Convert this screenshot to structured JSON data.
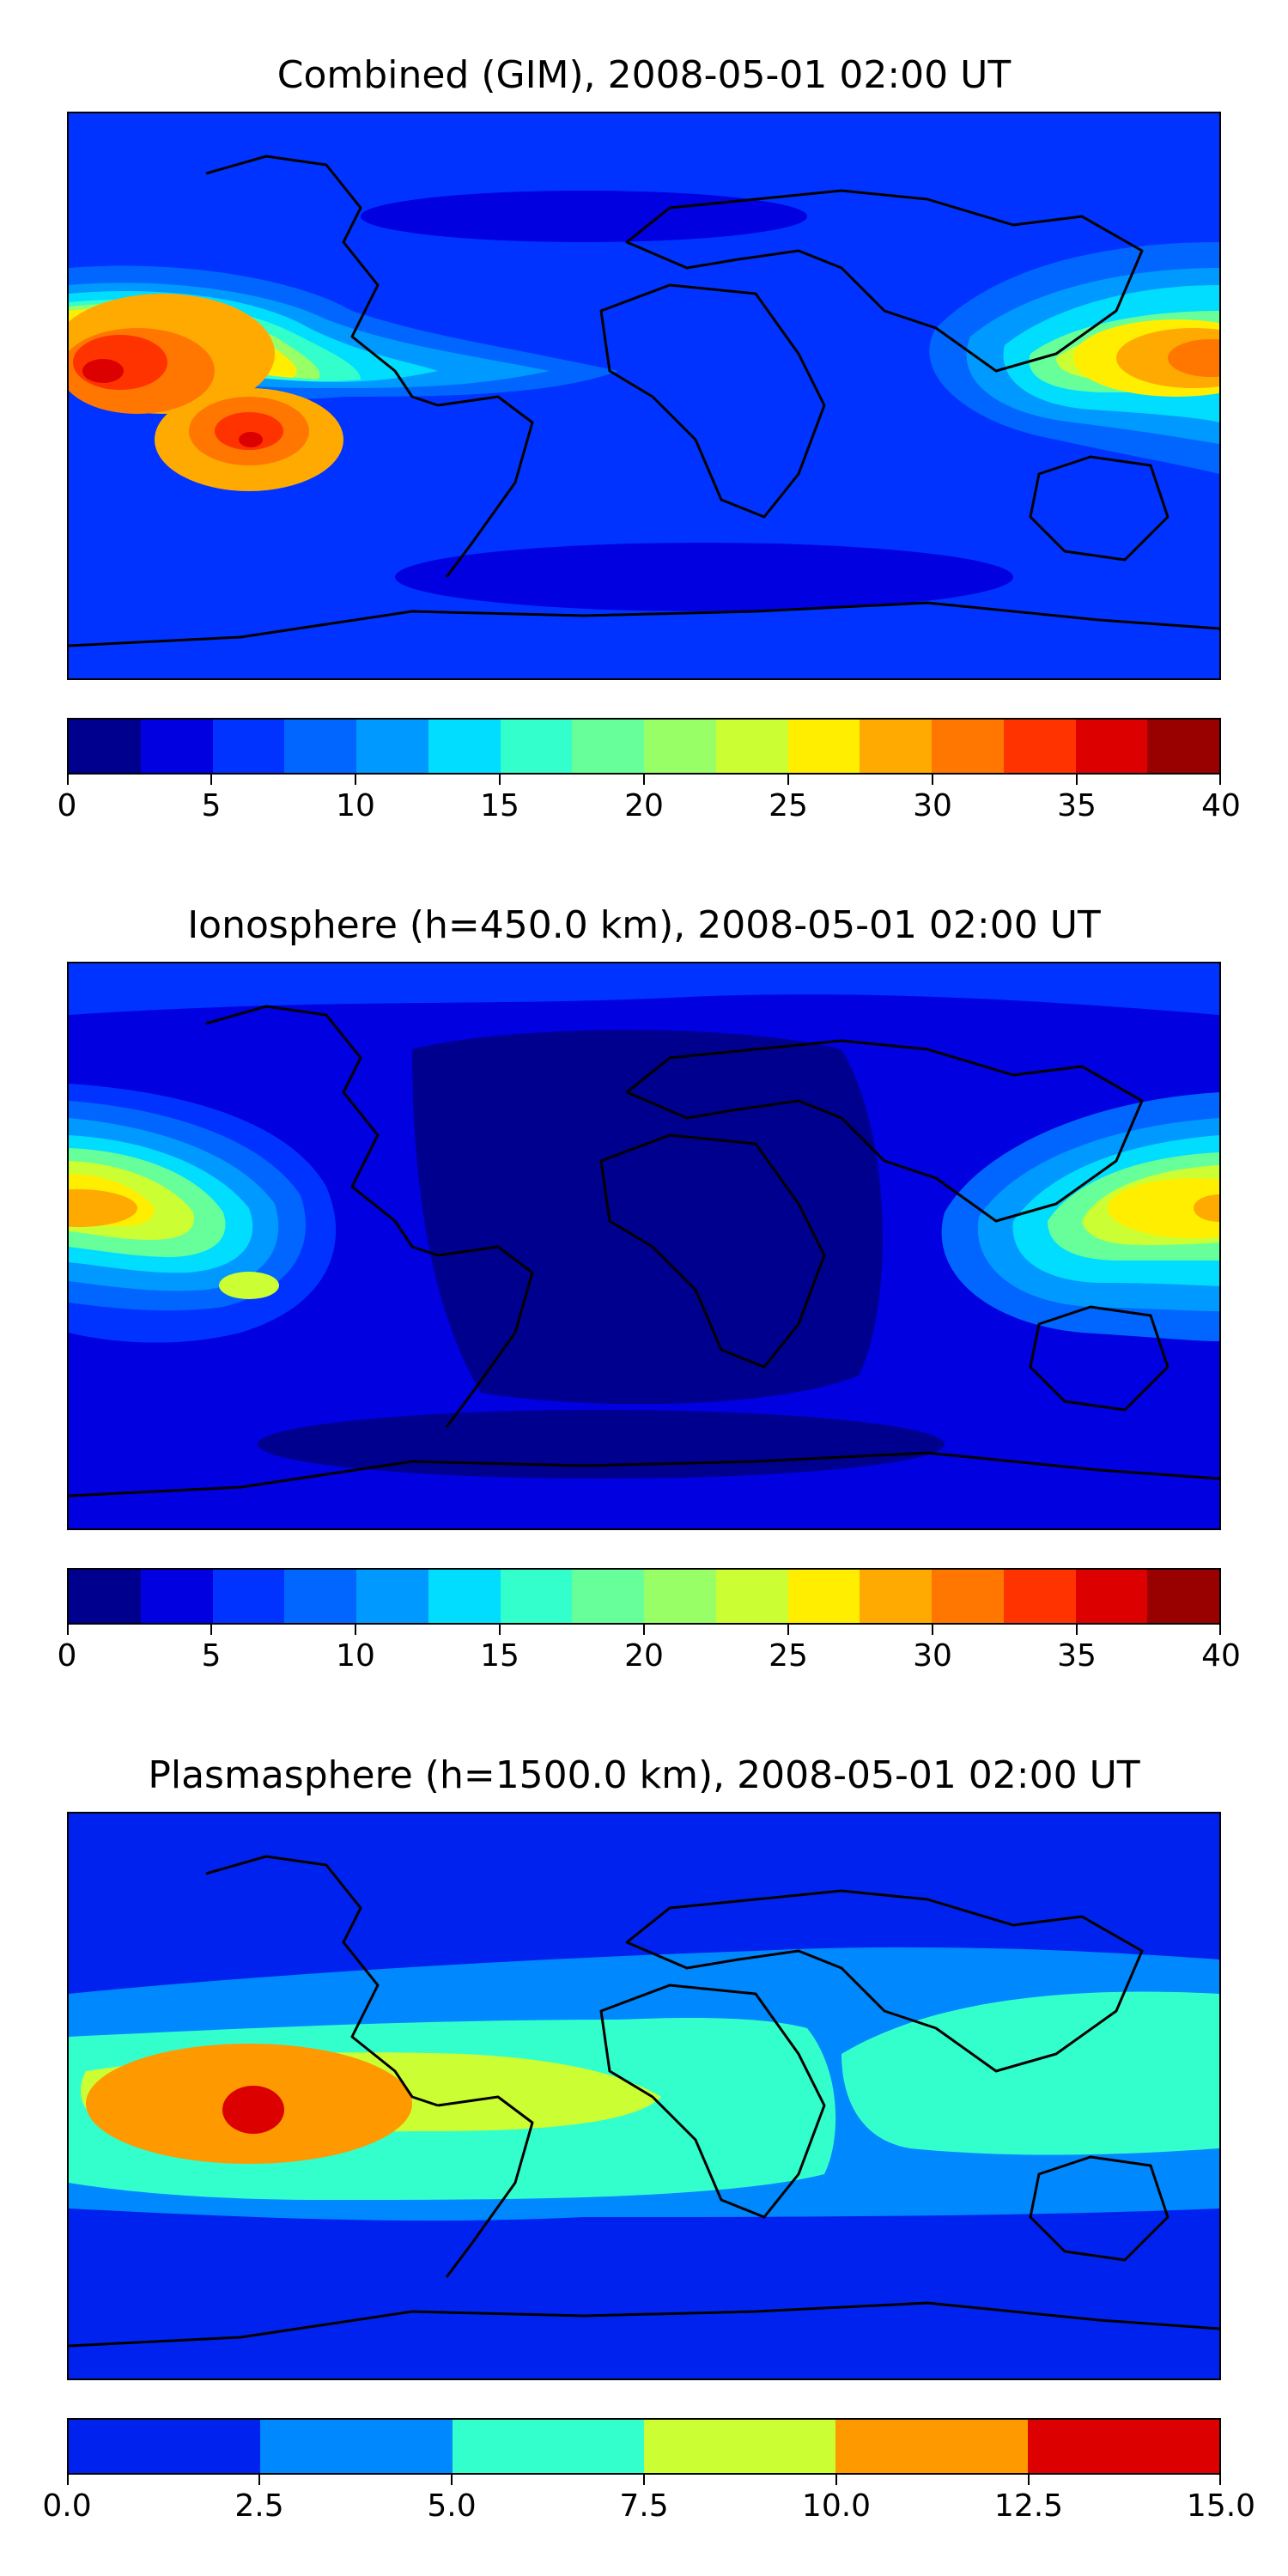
{
  "chart_data": [
    {
      "type": "heatmap",
      "title": "Combined (GIM), 2008-05-01 02:00 UT",
      "colorbar": {
        "range": [
          0,
          40
        ],
        "ticks": [
          "0",
          "5",
          "10",
          "15",
          "20",
          "25",
          "30",
          "35",
          "40"
        ],
        "levels": 16,
        "colors": [
          "#00008f",
          "#0000e0",
          "#0033ff",
          "#0066ff",
          "#0099ff",
          "#00ddff",
          "#33ffcc",
          "#66ff99",
          "#99ff66",
          "#ccff33",
          "#ffee00",
          "#ffaa00",
          "#ff7700",
          "#ff3300",
          "#dd0000",
          "#990000"
        ]
      },
      "peaks": [
        {
          "lon": -170,
          "lat": 12,
          "value": 36
        },
        {
          "lon": -125,
          "lat": -4,
          "value": 36
        },
        {
          "lon": 180,
          "lat": 8,
          "value": 32
        }
      ]
    },
    {
      "type": "heatmap",
      "title": "Ionosphere  (h=450.0 km), 2008-05-01 02:00 UT",
      "colorbar": {
        "range": [
          0,
          40
        ],
        "ticks": [
          "0",
          "5",
          "10",
          "15",
          "20",
          "25",
          "30",
          "35",
          "40"
        ],
        "levels": 16,
        "colors": [
          "#00008f",
          "#0000e0",
          "#0033ff",
          "#0066ff",
          "#0099ff",
          "#00ddff",
          "#33ffcc",
          "#66ff99",
          "#99ff66",
          "#ccff33",
          "#ffee00",
          "#ffaa00",
          "#ff7700",
          "#ff3300",
          "#dd0000",
          "#990000"
        ]
      },
      "peaks": [
        {
          "lon": -175,
          "lat": 12,
          "value": 28
        },
        {
          "lon": 175,
          "lat": 12,
          "value": 27
        }
      ]
    },
    {
      "type": "heatmap",
      "title": "Plasmasphere (h=1500.0 km), 2008-05-01 02:00 UT",
      "colorbar": {
        "range": [
          0,
          15
        ],
        "ticks": [
          "0.0",
          "2.5",
          "5.0",
          "7.5",
          "10.0",
          "12.5",
          "15.0"
        ],
        "levels": 6,
        "colors": [
          "#0022ee",
          "#0088ff",
          "#33ffcc",
          "#ccff33",
          "#ff9900",
          "#dd0000"
        ]
      },
      "peaks": [
        {
          "lon": -120,
          "lat": -5,
          "value": 13
        },
        {
          "lon": -60,
          "lat": -10,
          "value": 8.5
        }
      ]
    }
  ]
}
